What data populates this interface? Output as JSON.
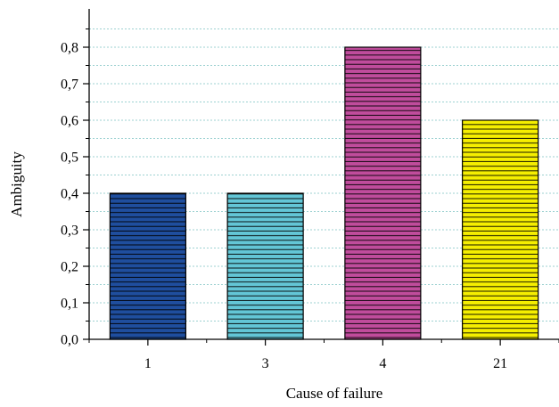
{
  "chart_data": {
    "type": "bar",
    "title": "",
    "xlabel": "Cause of failure",
    "ylabel": "Ambiguity",
    "categories": [
      "1",
      "3",
      "4",
      "21"
    ],
    "values": [
      0.4,
      0.4,
      0.8,
      0.6
    ],
    "bar_colors": [
      "#1f4e9e",
      "#63c6d6",
      "#c04c9c",
      "#f5ee00"
    ],
    "ylim": [
      0.0,
      0.9
    ],
    "y_ticks": [
      "0,0",
      "0,1",
      "0,2",
      "0,3",
      "0,4",
      "0,5",
      "0,6",
      "0,7",
      "0,8"
    ],
    "grid": true,
    "bar_pattern": "horizontal-lines"
  }
}
